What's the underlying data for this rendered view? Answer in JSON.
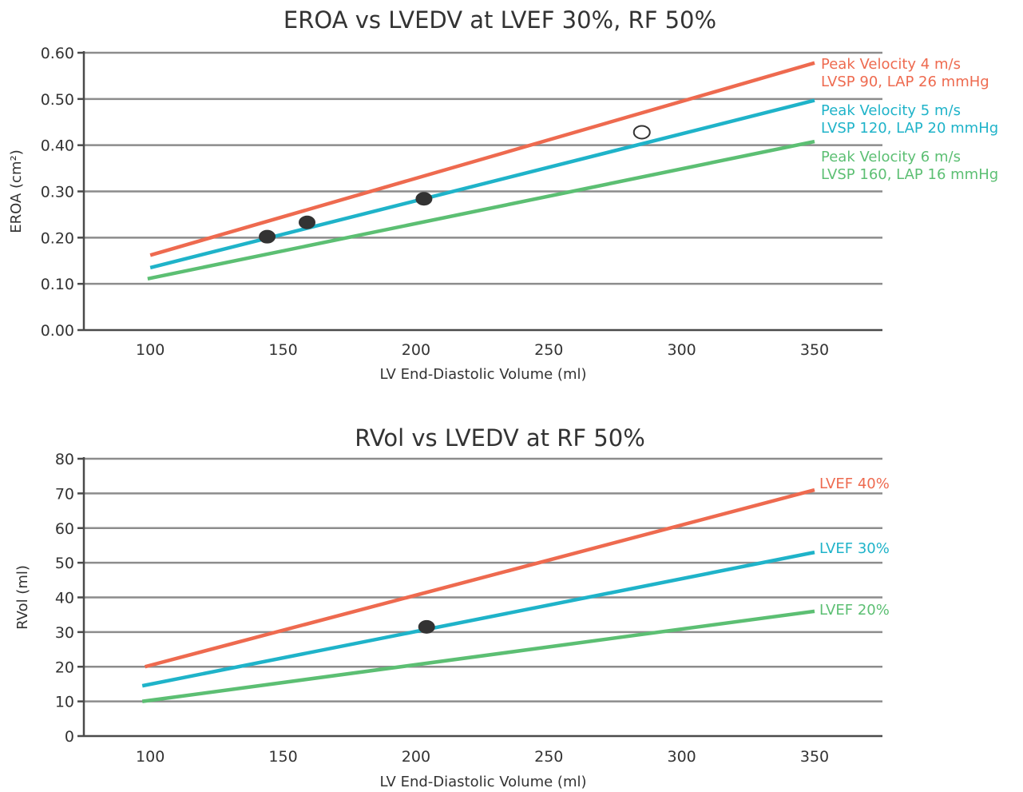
{
  "chart_data": [
    {
      "type": "line",
      "title": "EROA vs LVEDV at LVEF 30%, RF 50%",
      "xlabel": "LV End-Diastolic Volume (ml)",
      "ylabel": "EROA (cm²)",
      "xlim": [
        75,
        350
      ],
      "ylim": [
        0,
        0.6
      ],
      "x_ticks": [
        "100",
        "150",
        "200",
        "250",
        "300",
        "350"
      ],
      "y_ticks": [
        "0.00",
        "0.10",
        "0.20",
        "0.30",
        "0.40",
        "0.50",
        "0.60"
      ],
      "grid": true,
      "series": [
        {
          "label_lines": [
            "Peak Velocity 4 m/s",
            "LVSP 90, LAP 26 mmHg"
          ],
          "color": "#ee6a4f",
          "points": [
            [
              100,
              0.162
            ],
            [
              350,
              0.578
            ]
          ]
        },
        {
          "label_lines": [
            "Peak Velocity 5 m/s",
            "LVSP 120, LAP 20 mmHg"
          ],
          "color": "#1fb3c9",
          "points": [
            [
              100,
              0.135
            ],
            [
              350,
              0.497
            ]
          ]
        },
        {
          "label_lines": [
            "Peak Velocity 6 m/s",
            "LVSP 160, LAP 16 mmHg"
          ],
          "color": "#5cbf73",
          "points": [
            [
              99,
              0.111
            ],
            [
              350,
              0.408
            ]
          ]
        }
      ],
      "markers": [
        {
          "x": 144,
          "y": 0.202,
          "filled": true
        },
        {
          "x": 159,
          "y": 0.233,
          "filled": true
        },
        {
          "x": 203,
          "y": 0.284,
          "filled": true
        },
        {
          "x": 285,
          "y": 0.428,
          "filled": false
        }
      ]
    },
    {
      "type": "line",
      "title": "RVol vs LVEDV at RF 50%",
      "xlabel": "LV End-Diastolic Volume (ml)",
      "ylabel": "RVol (ml)",
      "xlim": [
        75,
        350
      ],
      "ylim": [
        0,
        80
      ],
      "x_ticks": [
        "100",
        "150",
        "200",
        "250",
        "300",
        "350"
      ],
      "y_ticks": [
        "0",
        "10",
        "20",
        "30",
        "40",
        "50",
        "60",
        "70",
        "80"
      ],
      "grid": true,
      "series": [
        {
          "label_lines": [
            "LVEF 40%"
          ],
          "color": "#ee6a4f",
          "points": [
            [
              98,
              20
            ],
            [
              350,
              71
            ]
          ]
        },
        {
          "label_lines": [
            "LVEF 30%"
          ],
          "color": "#1fb3c9",
          "points": [
            [
              97,
              14.5
            ],
            [
              350,
              53
            ]
          ]
        },
        {
          "label_lines": [
            "LVEF 20%"
          ],
          "color": "#5cbf73",
          "points": [
            [
              97,
              10
            ],
            [
              350,
              36
            ]
          ]
        }
      ],
      "markers": [
        {
          "x": 204,
          "y": 31.5,
          "filled": true
        }
      ]
    }
  ]
}
